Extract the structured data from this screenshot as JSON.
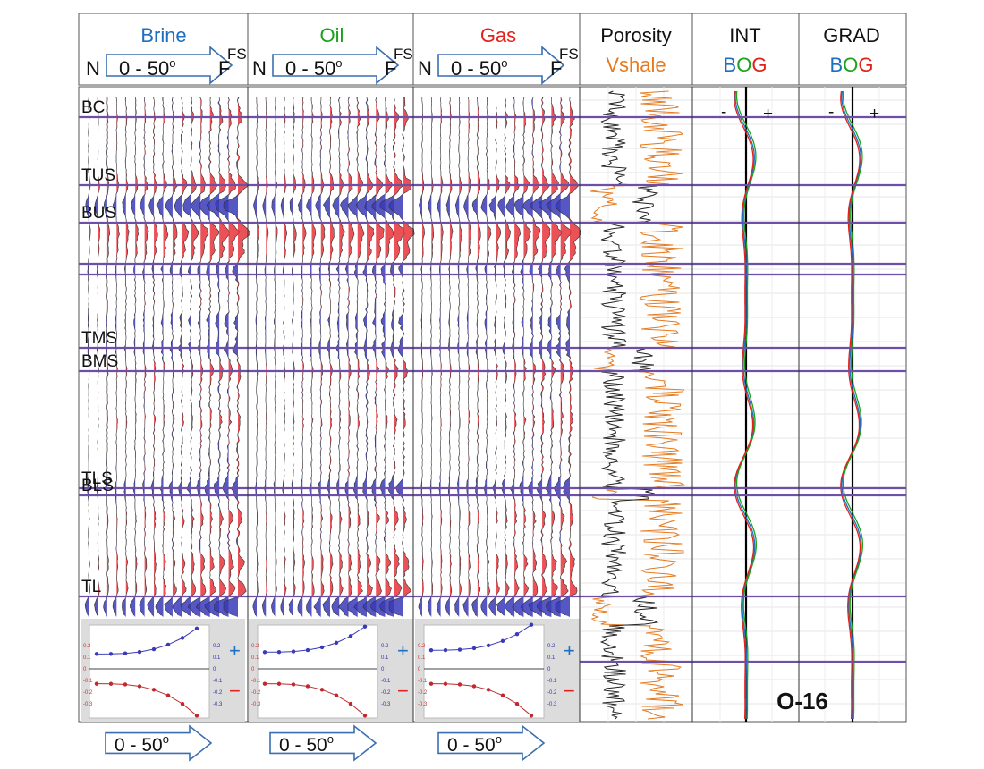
{
  "colors": {
    "brine": "#1f6fc0",
    "oil": "#1aa31a",
    "gas": "#e3211c",
    "vshale": "#e57a1f",
    "trough": "#3a3ab8",
    "peak": "#e8343a",
    "horizon": "#6e4fa8"
  },
  "header": {
    "brine": "Brine",
    "oil": "Oil",
    "gas": "Gas",
    "porosity": "Porosity",
    "vshale": "Vshale",
    "int": "INT",
    "grad": "GRAD",
    "bog_b": "B",
    "bog_o": "O",
    "bog_g": "G",
    "near": "N",
    "far": "F",
    "fs": "FS",
    "angle": "0 - 50",
    "deg": "o"
  },
  "horizons": [
    "BC",
    "TUS",
    "BUS",
    "TMS",
    "BMS",
    "TLS",
    "BLS",
    "TL"
  ],
  "curve_signs": {
    "minus": "-",
    "plus": "+"
  },
  "ava_signs": {
    "plus": "+",
    "minus": "−"
  },
  "ava_ticks": [
    "0.2",
    "0.1",
    "0",
    "-0.1",
    "-0.2",
    "-0.3"
  ],
  "well_id": "O-16",
  "bottom_angle": "0 - 50",
  "bottom_deg": "o"
}
